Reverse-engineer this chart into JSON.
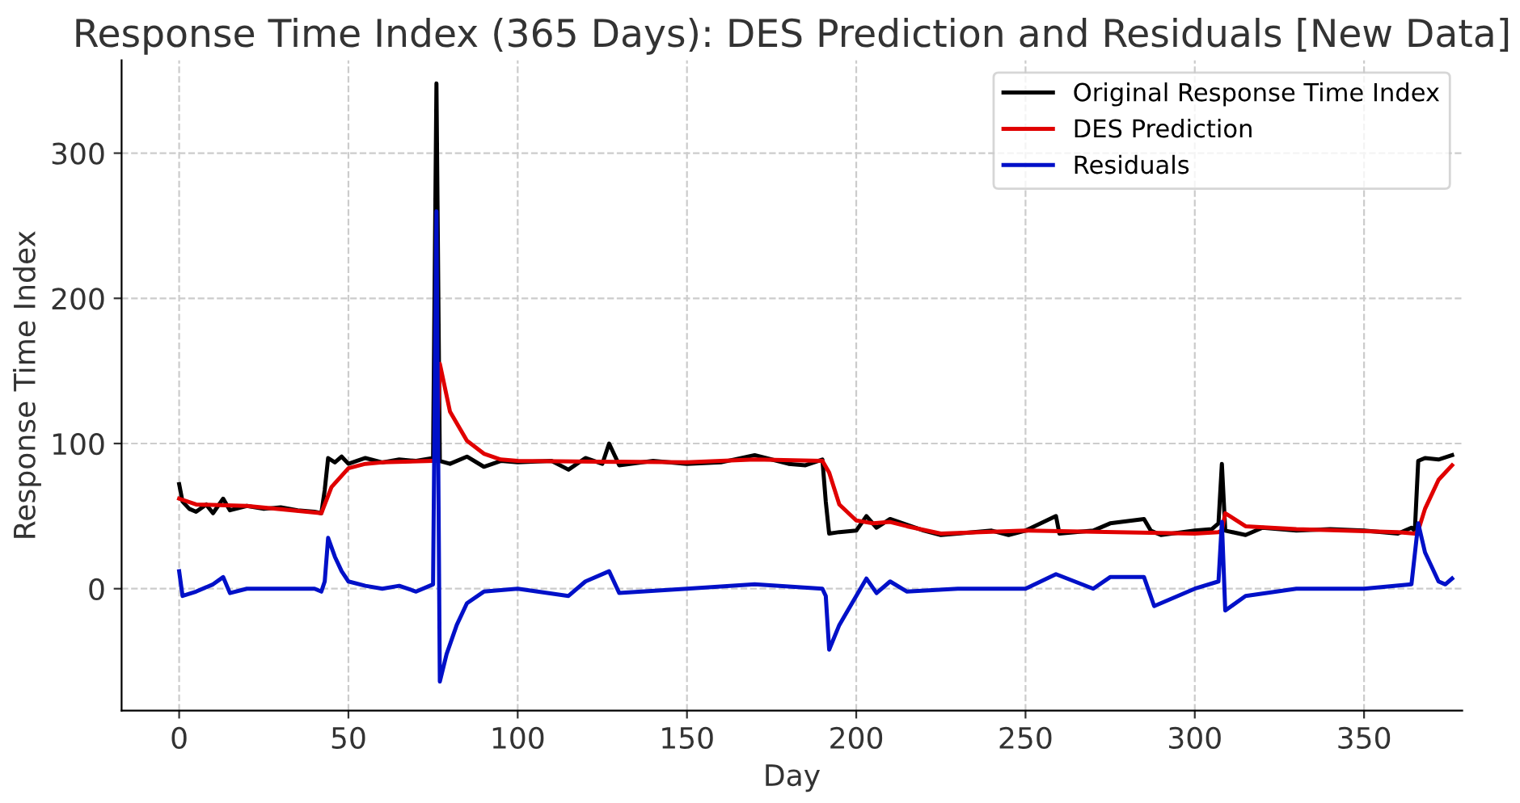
{
  "chart_data": {
    "type": "line",
    "title": "Response Time Index (365 Days): DES Prediction and Residuals [New Data]",
    "xlabel": "Day",
    "ylabel": "Response Time Index",
    "xlim": [
      -17,
      379
    ],
    "xticks": [
      0,
      50,
      100,
      150,
      200,
      250,
      300,
      350
    ],
    "ylim": [
      -84,
      364
    ],
    "yticks": [
      0,
      100,
      200,
      300
    ],
    "grid": true,
    "legend": "top right",
    "series": [
      {
        "name": "Original Response Time Index",
        "color": "#000000",
        "x": [
          0,
          1,
          3,
          5,
          8,
          10,
          13,
          15,
          20,
          25,
          30,
          35,
          40,
          42,
          43,
          44,
          46,
          48,
          50,
          55,
          60,
          65,
          70,
          75,
          76,
          77,
          80,
          85,
          90,
          95,
          100,
          110,
          115,
          120,
          125,
          127,
          130,
          140,
          150,
          160,
          170,
          175,
          180,
          185,
          190,
          191,
          192,
          195,
          200,
          203,
          206,
          210,
          215,
          220,
          225,
          230,
          240,
          245,
          250,
          259,
          260,
          270,
          275,
          285,
          287,
          290,
          300,
          305,
          307,
          308,
          309,
          315,
          320,
          330,
          340,
          350,
          360,
          364,
          365,
          366,
          368,
          372,
          376
        ],
        "values": [
          72,
          60,
          55,
          53,
          58,
          52,
          62,
          54,
          57,
          55,
          56,
          54,
          53,
          52,
          68,
          90,
          87,
          91,
          86,
          90,
          87,
          89,
          88,
          90,
          348,
          88,
          86,
          91,
          84,
          88,
          87,
          88,
          82,
          90,
          86,
          100,
          85,
          88,
          86,
          87,
          92,
          89,
          86,
          85,
          89,
          60,
          38,
          39,
          40,
          50,
          42,
          48,
          44,
          40,
          37,
          38,
          40,
          37,
          40,
          50,
          38,
          40,
          45,
          48,
          40,
          37,
          40,
          41,
          45,
          86,
          40,
          37,
          42,
          40,
          41,
          40,
          38,
          42,
          40,
          88,
          90,
          89,
          92
        ]
      },
      {
        "name": "DES Prediction",
        "color": "#e00000",
        "x": [
          0,
          5,
          20,
          42,
          45,
          50,
          55,
          60,
          75,
          76,
          77,
          80,
          85,
          90,
          95,
          100,
          150,
          170,
          190,
          192,
          195,
          200,
          205,
          210,
          215,
          225,
          250,
          300,
          307,
          308,
          309,
          315,
          330,
          360,
          365,
          366,
          368,
          372,
          376
        ],
        "values": [
          62,
          58,
          57,
          52,
          70,
          83,
          86,
          87,
          88,
          88,
          155,
          122,
          102,
          93,
          89,
          88,
          87,
          89,
          88,
          80,
          58,
          47,
          45,
          46,
          43,
          38,
          40,
          38,
          39,
          40,
          52,
          43,
          41,
          39,
          38,
          40,
          55,
          75,
          85
        ]
      },
      {
        "name": "Residuals",
        "color": "#0010c8",
        "x": [
          0,
          1,
          5,
          10,
          13,
          15,
          20,
          30,
          40,
          42,
          43,
          44,
          46,
          48,
          50,
          55,
          60,
          65,
          70,
          75,
          76,
          77,
          79,
          82,
          85,
          90,
          100,
          115,
          120,
          127,
          130,
          150,
          170,
          190,
          191,
          192,
          195,
          200,
          203,
          206,
          210,
          215,
          230,
          250,
          259,
          270,
          275,
          285,
          288,
          300,
          307,
          308,
          309,
          315,
          330,
          350,
          364,
          366,
          368,
          372,
          374,
          376
        ],
        "values": [
          12,
          -5,
          -2,
          3,
          8,
          -3,
          0,
          0,
          0,
          -2,
          5,
          35,
          22,
          12,
          5,
          2,
          0,
          2,
          -2,
          3,
          260,
          -64,
          -45,
          -25,
          -10,
          -2,
          0,
          -5,
          5,
          12,
          -3,
          0,
          3,
          0,
          -5,
          -42,
          -25,
          -5,
          7,
          -3,
          5,
          -2,
          0,
          0,
          10,
          0,
          8,
          8,
          -12,
          0,
          5,
          46,
          -15,
          -5,
          0,
          0,
          3,
          45,
          25,
          5,
          3,
          7
        ]
      }
    ]
  }
}
